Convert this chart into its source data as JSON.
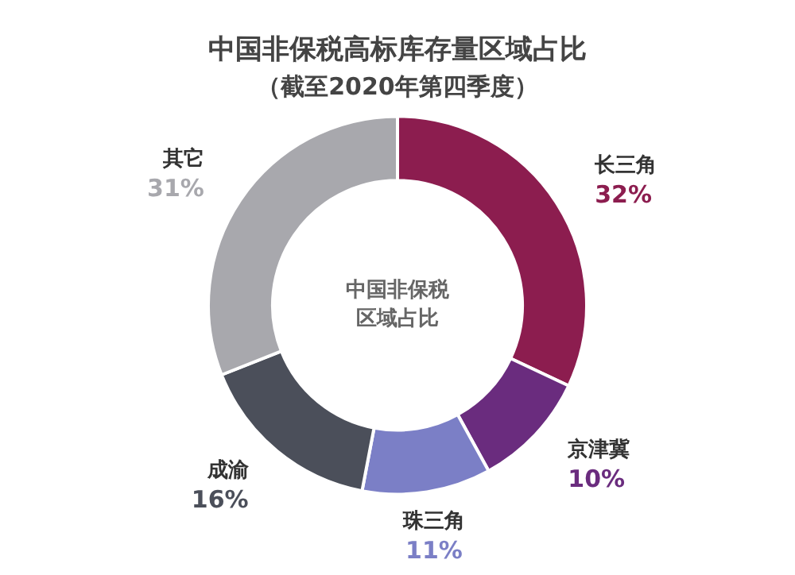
{
  "chart_data": {
    "type": "donut",
    "title": "中国非保税高标库存量区域占比",
    "subtitle": "（截至2020年第四季度）",
    "categories": [
      "长三角",
      "京津冀",
      "珠三角",
      "成渝",
      "其它"
    ],
    "values": [
      32,
      10,
      11,
      16,
      31
    ],
    "colors": [
      "#8c1d4f",
      "#6a2c7e",
      "#7b7fc6",
      "#4b4f5a",
      "#a8a8ad"
    ],
    "value_labels": [
      "32%",
      "10%",
      "11%",
      "16%",
      "31%"
    ],
    "annotations": [
      "中国非保税区域占比"
    ],
    "legend": false
  }
}
